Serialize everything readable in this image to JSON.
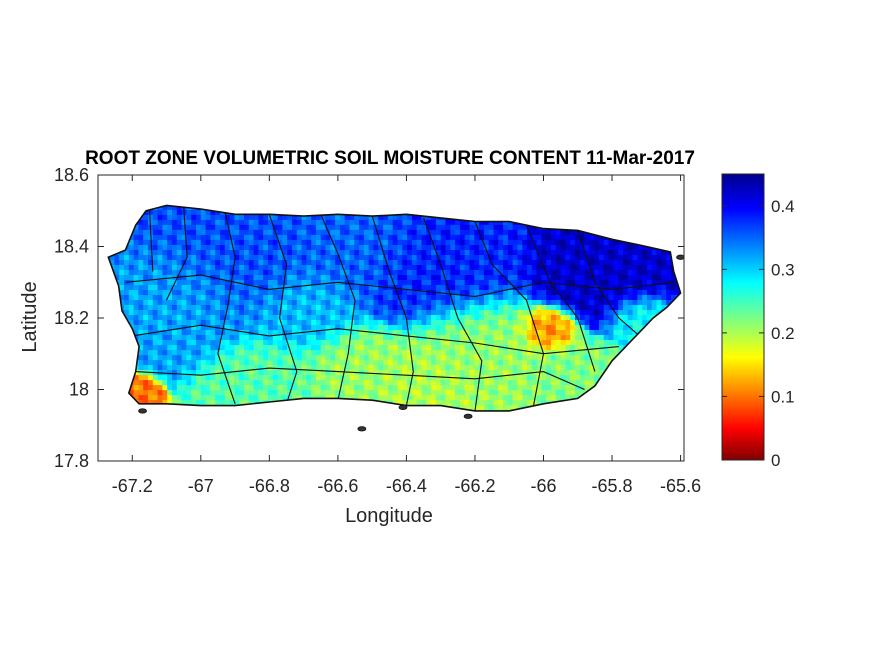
{
  "chart_data": {
    "type": "heatmap",
    "title": "ROOT ZONE VOLUMETRIC SOIL MOISTURE CONTENT 11-Mar-2017",
    "xlabel": "Longitude",
    "ylabel": "Latitude",
    "xlim": [
      -67.3,
      -65.59
    ],
    "ylim": [
      17.8,
      18.6
    ],
    "x_ticks": [
      {
        "value": -67.2,
        "label": "-67.2"
      },
      {
        "value": -67.0,
        "label": "-67"
      },
      {
        "value": -66.8,
        "label": "-66.8"
      },
      {
        "value": -66.6,
        "label": "-66.6"
      },
      {
        "value": -66.4,
        "label": "-66.4"
      },
      {
        "value": -66.2,
        "label": "-66.2"
      },
      {
        "value": -66.0,
        "label": "-66"
      },
      {
        "value": -65.8,
        "label": "-65.8"
      },
      {
        "value": -65.6,
        "label": "-65.6"
      }
    ],
    "y_ticks": [
      {
        "value": 17.8,
        "label": "17.8"
      },
      {
        "value": 18.0,
        "label": "18"
      },
      {
        "value": 18.2,
        "label": "18.2"
      },
      {
        "value": 18.4,
        "label": "18.4"
      },
      {
        "value": 18.6,
        "label": "18.6"
      }
    ],
    "colorbar": {
      "range": [
        0,
        0.45
      ],
      "ticks": [
        {
          "value": 0,
          "label": "0"
        },
        {
          "value": 0.1,
          "label": "0.1"
        },
        {
          "value": 0.2,
          "label": "0.2"
        },
        {
          "value": 0.3,
          "label": "0.3"
        },
        {
          "value": 0.4,
          "label": "0.4"
        }
      ],
      "colormap": "jet-reversed"
    },
    "grid": false,
    "outline": [
      [
        -67.27,
        18.37
      ],
      [
        -67.22,
        18.39
      ],
      [
        -67.19,
        18.46
      ],
      [
        -67.16,
        18.5
      ],
      [
        -67.1,
        18.515
      ],
      [
        -67.0,
        18.505
      ],
      [
        -66.9,
        18.49
      ],
      [
        -66.8,
        18.49
      ],
      [
        -66.7,
        18.485
      ],
      [
        -66.6,
        18.49
      ],
      [
        -66.5,
        18.485
      ],
      [
        -66.4,
        18.49
      ],
      [
        -66.3,
        18.48
      ],
      [
        -66.2,
        18.47
      ],
      [
        -66.1,
        18.47
      ],
      [
        -66.0,
        18.45
      ],
      [
        -65.9,
        18.445
      ],
      [
        -65.8,
        18.42
      ],
      [
        -65.7,
        18.4
      ],
      [
        -65.63,
        18.385
      ],
      [
        -65.62,
        18.33
      ],
      [
        -65.6,
        18.27
      ],
      [
        -65.64,
        18.23
      ],
      [
        -65.68,
        18.2
      ],
      [
        -65.73,
        18.15
      ],
      [
        -65.8,
        18.08
      ],
      [
        -65.85,
        18.01
      ],
      [
        -65.9,
        17.975
      ],
      [
        -66.0,
        17.96
      ],
      [
        -66.1,
        17.94
      ],
      [
        -66.2,
        17.94
      ],
      [
        -66.3,
        17.955
      ],
      [
        -66.4,
        17.955
      ],
      [
        -66.5,
        17.97
      ],
      [
        -66.6,
        17.975
      ],
      [
        -66.7,
        17.975
      ],
      [
        -66.8,
        17.965
      ],
      [
        -66.9,
        17.955
      ],
      [
        -67.0,
        17.955
      ],
      [
        -67.1,
        17.96
      ],
      [
        -67.18,
        17.96
      ],
      [
        -67.21,
        17.99
      ],
      [
        -67.19,
        18.05
      ],
      [
        -67.18,
        18.12
      ],
      [
        -67.2,
        18.17
      ],
      [
        -67.23,
        18.22
      ],
      [
        -67.24,
        18.29
      ],
      [
        -67.27,
        18.37
      ]
    ],
    "moisture_centers": [
      {
        "lon": -65.82,
        "lat": 18.33,
        "value": 0.42,
        "radius": 0.12
      },
      {
        "lon": -66.3,
        "lat": 18.34,
        "value": 0.38,
        "radius": 0.14
      },
      {
        "lon": -66.9,
        "lat": 18.38,
        "value": 0.36,
        "radius": 0.15
      },
      {
        "lon": -66.55,
        "lat": 18.4,
        "value": 0.35,
        "radius": 0.12
      },
      {
        "lon": -67.05,
        "lat": 18.25,
        "value": 0.32,
        "radius": 0.12
      },
      {
        "lon": -66.7,
        "lat": 18.22,
        "value": 0.31,
        "radius": 0.1
      },
      {
        "lon": -66.2,
        "lat": 18.12,
        "value": 0.21,
        "radius": 0.12
      },
      {
        "lon": -66.55,
        "lat": 18.05,
        "value": 0.21,
        "radius": 0.1
      },
      {
        "lon": -66.35,
        "lat": 18.02,
        "value": 0.2,
        "radius": 0.1
      },
      {
        "lon": -66.8,
        "lat": 18.02,
        "value": 0.24,
        "radius": 0.1
      },
      {
        "lon": -65.98,
        "lat": 18.17,
        "value": 0.11,
        "radius": 0.05
      },
      {
        "lon": -65.9,
        "lat": 18.05,
        "value": 0.22,
        "radius": 0.08
      },
      {
        "lon": -67.2,
        "lat": 17.98,
        "value": 0.1,
        "radius": 0.04
      },
      {
        "lon": -65.72,
        "lat": 18.2,
        "value": 0.27,
        "radius": 0.06
      }
    ],
    "municipal_lines": [
      [
        [
          -67.15,
          18.51
        ],
        [
          -67.14,
          18.33
        ]
      ],
      [
        [
          -67.05,
          18.51
        ],
        [
          -67.04,
          18.37
        ],
        [
          -67.1,
          18.25
        ]
      ],
      [
        [
          -66.93,
          18.5
        ],
        [
          -66.9,
          18.37
        ],
        [
          -66.92,
          18.24
        ],
        [
          -66.95,
          18.1
        ],
        [
          -66.9,
          17.96
        ]
      ],
      [
        [
          -66.8,
          18.49
        ],
        [
          -66.75,
          18.35
        ],
        [
          -66.77,
          18.2
        ],
        [
          -66.72,
          18.05
        ],
        [
          -66.75,
          17.96
        ]
      ],
      [
        [
          -66.65,
          18.49
        ],
        [
          -66.6,
          18.38
        ],
        [
          -66.55,
          18.25
        ],
        [
          -66.57,
          18.1
        ],
        [
          -66.6,
          17.97
        ]
      ],
      [
        [
          -66.5,
          18.485
        ],
        [
          -66.45,
          18.33
        ],
        [
          -66.4,
          18.2
        ],
        [
          -66.38,
          18.05
        ],
        [
          -66.4,
          17.955
        ]
      ],
      [
        [
          -66.35,
          18.48
        ],
        [
          -66.3,
          18.35
        ],
        [
          -66.25,
          18.2
        ],
        [
          -66.18,
          18.08
        ],
        [
          -66.2,
          17.94
        ]
      ],
      [
        [
          -66.2,
          18.47
        ],
        [
          -66.15,
          18.35
        ],
        [
          -66.05,
          18.25
        ],
        [
          -66.0,
          18.1
        ],
        [
          -66.03,
          17.95
        ]
      ],
      [
        [
          -66.05,
          18.46
        ],
        [
          -65.98,
          18.3
        ],
        [
          -65.9,
          18.2
        ],
        [
          -65.85,
          18.05
        ]
      ],
      [
        [
          -65.9,
          18.445
        ],
        [
          -65.85,
          18.3
        ],
        [
          -65.78,
          18.2
        ],
        [
          -65.72,
          18.15
        ]
      ],
      [
        [
          -67.22,
          18.3
        ],
        [
          -67.0,
          18.32
        ],
        [
          -66.8,
          18.28
        ],
        [
          -66.6,
          18.3
        ],
        [
          -66.4,
          18.28
        ],
        [
          -66.2,
          18.26
        ],
        [
          -66.0,
          18.3
        ],
        [
          -65.8,
          18.28
        ],
        [
          -65.62,
          18.3
        ]
      ],
      [
        [
          -67.2,
          18.15
        ],
        [
          -67.0,
          18.18
        ],
        [
          -66.8,
          18.15
        ],
        [
          -66.6,
          18.17
        ],
        [
          -66.4,
          18.15
        ],
        [
          -66.2,
          18.13
        ],
        [
          -66.0,
          18.1
        ],
        [
          -65.78,
          18.12
        ]
      ],
      [
        [
          -67.19,
          18.05
        ],
        [
          -67.0,
          18.04
        ],
        [
          -66.8,
          18.06
        ],
        [
          -66.6,
          18.05
        ],
        [
          -66.4,
          18.04
        ],
        [
          -66.2,
          18.03
        ],
        [
          -66.0,
          18.05
        ],
        [
          -65.88,
          18.0
        ]
      ]
    ],
    "islets": [
      {
        "lon": -66.53,
        "lat": 17.89
      },
      {
        "lon": -66.41,
        "lat": 17.95
      },
      {
        "lon": -66.22,
        "lat": 17.925
      },
      {
        "lon": -67.17,
        "lat": 17.94
      },
      {
        "lon": -65.6,
        "lat": 18.37
      }
    ]
  }
}
